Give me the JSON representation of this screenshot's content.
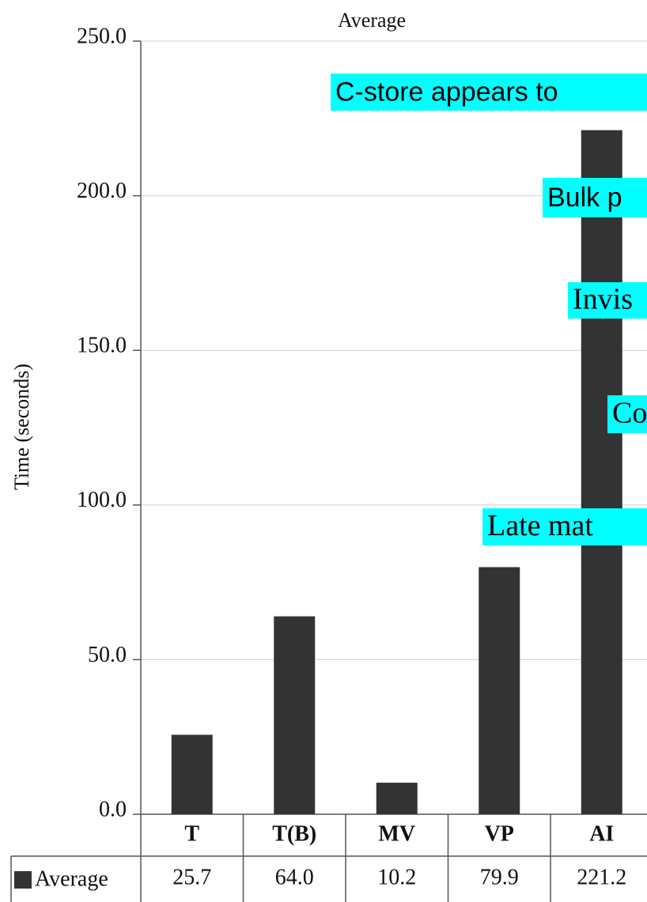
{
  "chart_data": {
    "type": "bar",
    "title": "Average",
    "y_label": "Time (seconds)",
    "categories": [
      "T",
      "T(B)",
      "MV",
      "VP",
      "AI"
    ],
    "series": [
      {
        "name": "Average",
        "color": "#333333",
        "values": [
          25.7,
          64.0,
          10.2,
          79.9,
          221.2
        ],
        "value_labels": [
          "25.7",
          "64.0",
          "10.2",
          "79.9",
          "221.2"
        ]
      }
    ],
    "ylim": [
      0,
      250
    ],
    "yticks": [
      {
        "value": 0,
        "label": "0.0"
      },
      {
        "value": 50,
        "label": "50.0"
      },
      {
        "value": 100,
        "label": "100.0"
      },
      {
        "value": 150,
        "label": "150.0"
      },
      {
        "value": 200,
        "label": "200.0"
      },
      {
        "value": 250,
        "label": "250.0"
      }
    ],
    "grid": true,
    "annotations": [
      {
        "text": "C-store appears to"
      },
      {
        "text": "Bulk p"
      },
      {
        "text": "Invis"
      },
      {
        "text": "Co"
      },
      {
        "text": "Late mat"
      }
    ]
  }
}
